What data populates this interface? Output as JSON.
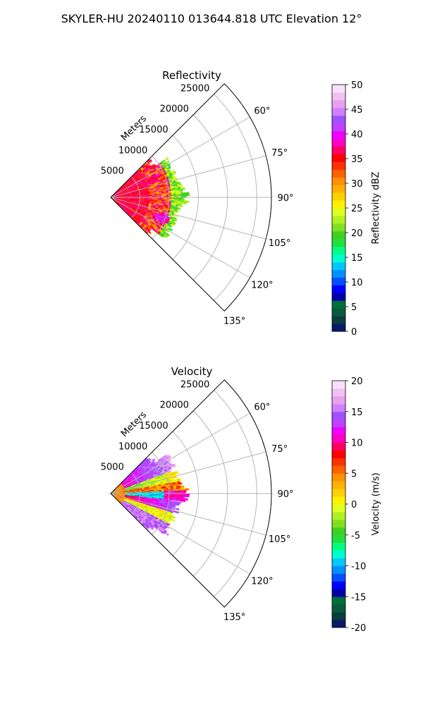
{
  "figure": {
    "title": "SKYLER-HU  20240110  013644.818 UTC Elevation 12°"
  },
  "chart_data": [
    {
      "type": "heatmap",
      "projection": "polar-sector",
      "title": "Reflectivity",
      "theta_ticks": [
        "60°",
        "75°",
        "90°",
        "105°",
        "120°",
        "135°"
      ],
      "theta_range_deg": [
        45,
        135
      ],
      "r_label": "Meters",
      "r_ticks": [
        5000,
        10000,
        15000,
        20000,
        25000
      ],
      "r_max": 27500,
      "data_extent_r": 13000,
      "colorbar": {
        "label": "Reflectivity dBZ",
        "range": [
          0,
          50
        ],
        "ticks": [
          0,
          5,
          10,
          15,
          20,
          25,
          30,
          35,
          40,
          45,
          50
        ]
      },
      "colors": [
        "#061a66",
        "#0b3d40",
        "#0a5a3c",
        "#006e3a",
        "#0000a8",
        "#0000ff",
        "#0050ff",
        "#0090ff",
        "#00c8ff",
        "#00ffd0",
        "#00ff80",
        "#20e040",
        "#40d020",
        "#80e020",
        "#b0f020",
        "#e0ff20",
        "#fff000",
        "#ffd000",
        "#ffb000",
        "#ff9000",
        "#ff6000",
        "#ff3000",
        "#ff0000",
        "#ff0060",
        "#ff00c0",
        "#f000ff",
        "#c040ff",
        "#a050ff",
        "#d080ff",
        "#e8a0f0",
        "#f0c0f0",
        "#f8e0f8"
      ]
    },
    {
      "type": "heatmap",
      "projection": "polar-sector",
      "title": "Velocity",
      "theta_ticks": [
        "60°",
        "75°",
        "90°",
        "105°",
        "120°",
        "135°"
      ],
      "theta_range_deg": [
        45,
        135
      ],
      "r_label": "Meters",
      "r_ticks": [
        5000,
        10000,
        15000,
        20000,
        25000
      ],
      "r_max": 27500,
      "data_extent_r": 13000,
      "colorbar": {
        "label": "Velocity (m/s)",
        "range": [
          -20,
          20
        ],
        "ticks": [
          -20,
          -15,
          -10,
          -5,
          0,
          5,
          10,
          15,
          20
        ]
      },
      "colors": [
        "#061a66",
        "#0b3d40",
        "#0a5a3c",
        "#006e3a",
        "#0000a8",
        "#0000ff",
        "#0050ff",
        "#0090ff",
        "#00c8ff",
        "#00ffd0",
        "#00ff80",
        "#20e040",
        "#40d020",
        "#80e020",
        "#b0f020",
        "#e0ff20",
        "#fff000",
        "#ffd000",
        "#ffb000",
        "#ff9000",
        "#ff6000",
        "#ff3000",
        "#ff0000",
        "#ff0060",
        "#ff00c0",
        "#f000ff",
        "#c040ff",
        "#a050ff",
        "#d080ff",
        "#e8a0f0",
        "#f0c0f0",
        "#f8e0f8"
      ]
    }
  ]
}
